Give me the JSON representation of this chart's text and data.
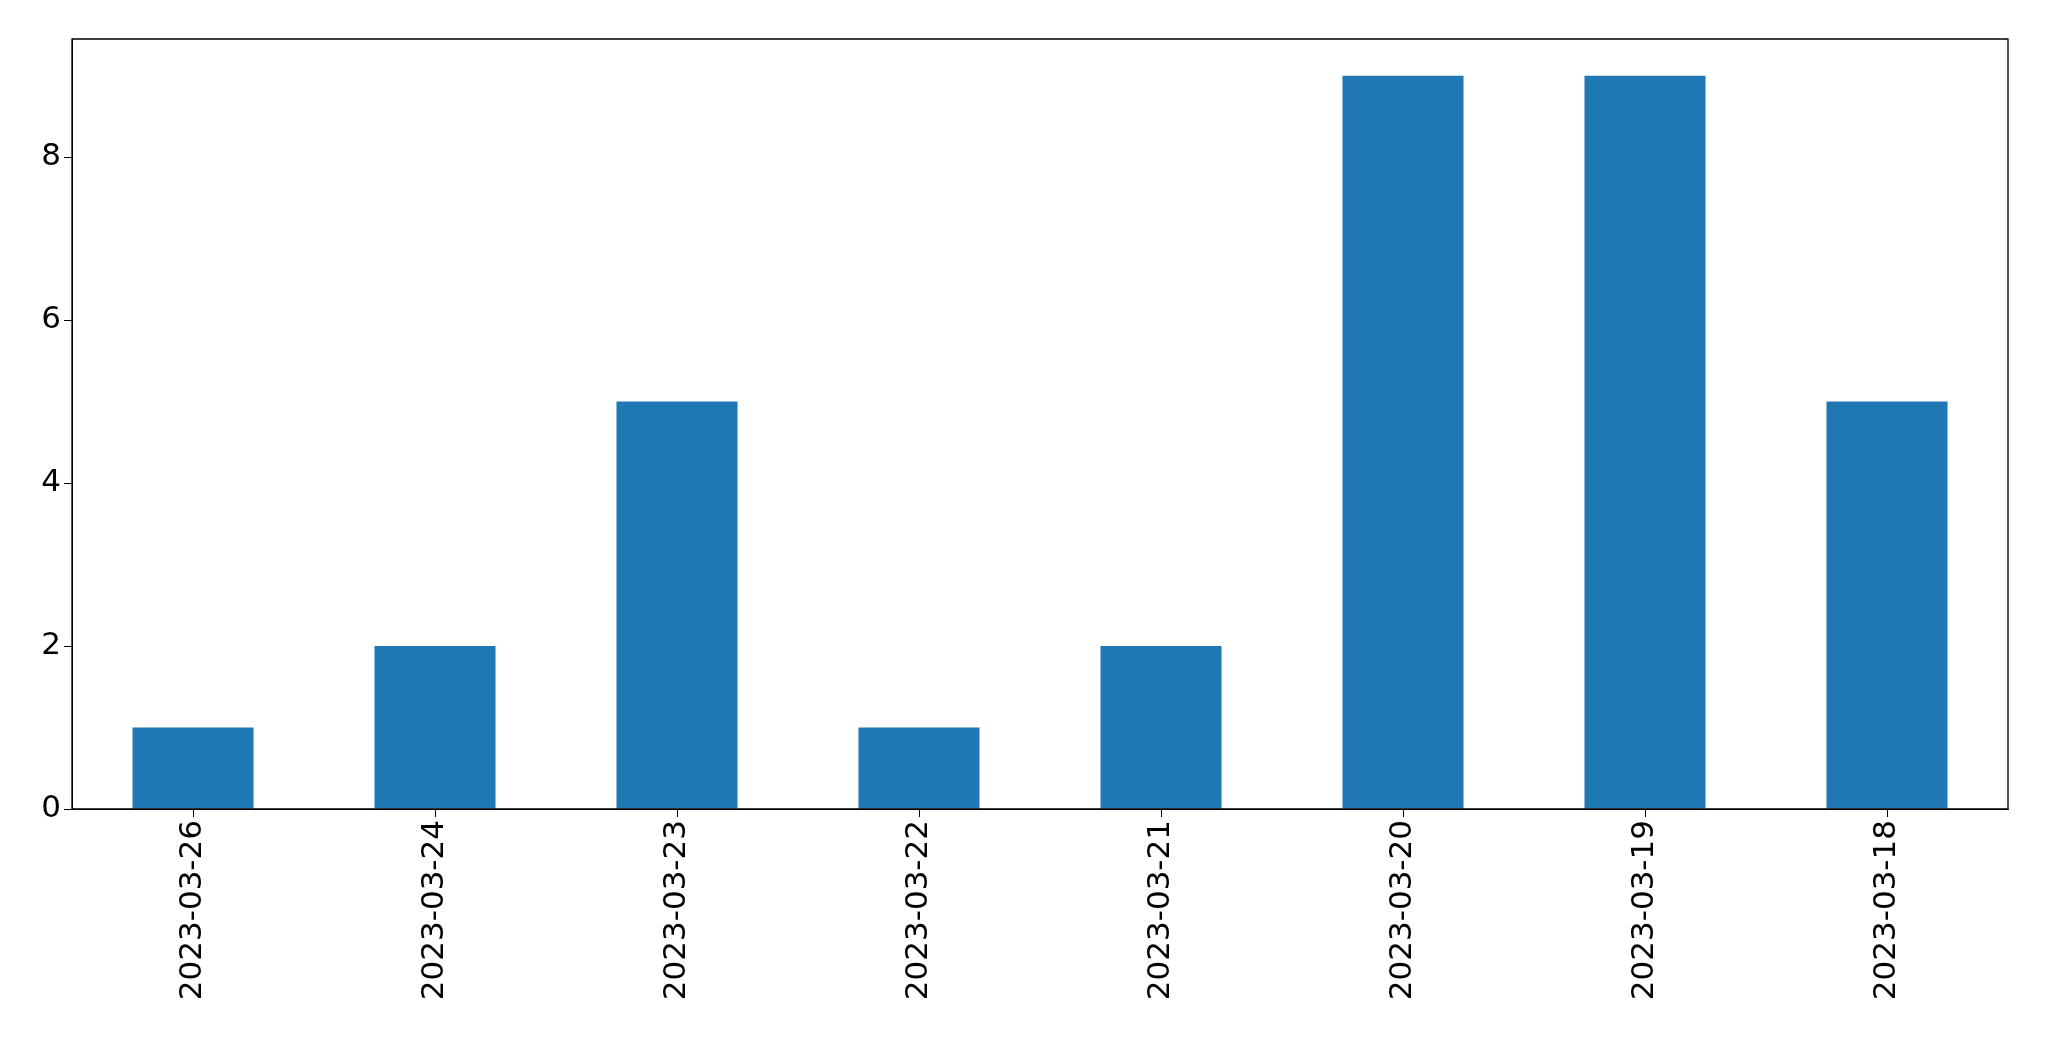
{
  "chart_data": {
    "type": "bar",
    "categories": [
      "2023-03-26",
      "2023-03-24",
      "2023-03-23",
      "2023-03-22",
      "2023-03-21",
      "2023-03-20",
      "2023-03-19",
      "2023-03-18"
    ],
    "values": [
      1,
      2,
      5,
      1,
      2,
      9,
      9,
      5
    ],
    "color": "#1f77b4",
    "ylim": [
      0,
      9.45
    ],
    "yticks": [
      0,
      2,
      4,
      6,
      8
    ],
    "grid": false,
    "legend": false
  }
}
